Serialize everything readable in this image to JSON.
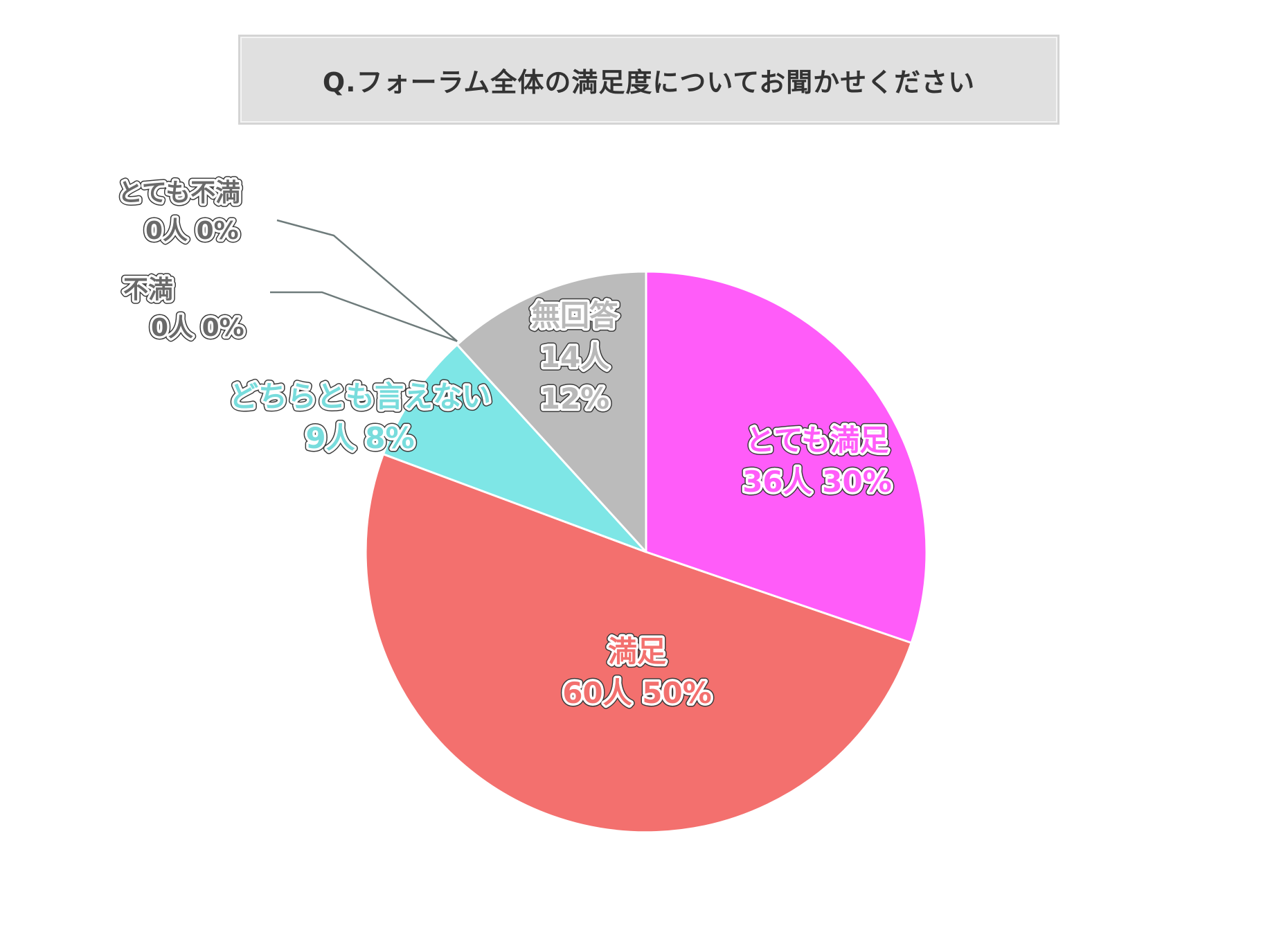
{
  "title": "Q.フォーラム全体の満足度についてお聞かせください",
  "chart_data": {
    "type": "pie",
    "title": "Q.フォーラム全体の満足度についてお聞かせください",
    "start_angle_deg": 0,
    "direction": "clockwise",
    "slices": [
      {
        "name": "とても満足",
        "count": 36,
        "count_label": "36人",
        "percent": 30,
        "percent_label": "30%",
        "color": "#ff5cf9",
        "text_color": "#ff5cf9"
      },
      {
        "name": "満足",
        "count": 60,
        "count_label": "60人",
        "percent": 50,
        "percent_label": "50%",
        "color": "#f3706e",
        "text_color": "#f3706e"
      },
      {
        "name": "どちらとも言えない",
        "count": 9,
        "count_label": "9人",
        "percent": 8,
        "percent_label": "8%",
        "color": "#7ee6e6",
        "text_color": "#78dcdc"
      },
      {
        "name": "不満",
        "count": 0,
        "count_label": "0人",
        "percent": 0,
        "percent_label": "0%",
        "color": "#8a8a8a",
        "text_color": "#6a6a6a"
      },
      {
        "name": "とても不満",
        "count": 0,
        "count_label": "0人",
        "percent": 0,
        "percent_label": "0%",
        "color": "#8a8a8a",
        "text_color": "#6a6a6a"
      },
      {
        "name": "無回答",
        "count": 14,
        "count_label": "14人",
        "percent": 12,
        "percent_label": "12%",
        "color": "#bbbbbb",
        "text_color": "#b8b8b8"
      }
    ]
  }
}
